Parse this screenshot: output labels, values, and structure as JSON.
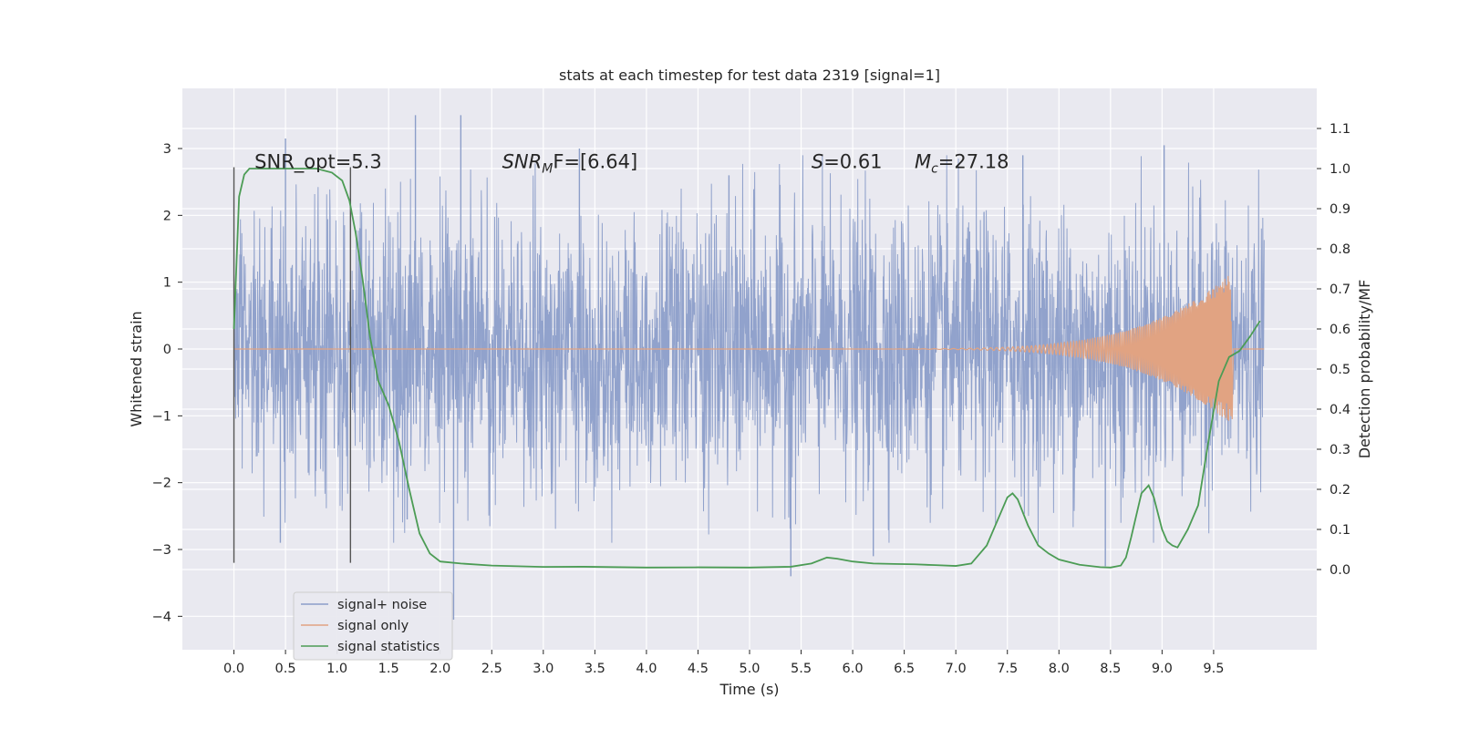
{
  "chart_data": {
    "type": "line",
    "title": "stats at each timestep for test data 2319 [signal=1]",
    "xlabel": "Time (s)",
    "ylabel": "Whitened strain",
    "y2label": "Detection probability/MF",
    "xlim": [
      -0.5,
      10.5
    ],
    "ylim": [
      -4.5,
      3.9
    ],
    "y2lim": [
      -0.2,
      1.2
    ],
    "x_ticks": [
      0.0,
      0.5,
      1.0,
      1.5,
      2.0,
      2.5,
      3.0,
      3.5,
      4.0,
      4.5,
      5.0,
      5.5,
      6.0,
      6.5,
      7.0,
      7.5,
      8.0,
      8.5,
      9.0,
      9.5
    ],
    "x_tick_labels": [
      "0.0",
      "0.5",
      "1.0",
      "1.5",
      "2.0",
      "2.5",
      "3.0",
      "3.5",
      "4.0",
      "4.5",
      "5.0",
      "5.5",
      "6.0",
      "6.5",
      "7.0",
      "7.5",
      "8.0",
      "8.5",
      "9.0",
      "9.5"
    ],
    "y_ticks": [
      3,
      2,
      1,
      0,
      -1,
      -2,
      -3,
      -4
    ],
    "y_tick_labels": [
      "3",
      "2",
      "1",
      "0",
      "−1",
      "−2",
      "−3",
      "−4"
    ],
    "y2_ticks": [
      1.1,
      1.0,
      0.9,
      0.8,
      0.7,
      0.6,
      0.5,
      0.4,
      0.3,
      0.2,
      0.1,
      0.0
    ],
    "y2_tick_labels": [
      "1.1",
      "1.0",
      "0.9",
      "0.8",
      "0.7",
      "0.6",
      "0.5",
      "0.4",
      "0.3",
      "0.2",
      "0.1",
      "0.0"
    ],
    "grid": true,
    "legend_position": "lower-left",
    "annotations": [
      {
        "prefix": "SNR_opt=5.3",
        "sub": "",
        "suffix": "",
        "x": 0.2,
        "y": 2.8
      },
      {
        "prefix": "SNR",
        "sub": "M",
        "suffix": "F=[6.64]",
        "italic_prefix": true,
        "x": 2.6,
        "y": 2.8
      },
      {
        "prefix": "S",
        "sub": "",
        "suffix": "=0.61",
        "italic_prefix": true,
        "x": 5.6,
        "y": 2.8
      },
      {
        "prefix": "M",
        "sub": "c",
        "suffix": "=27.18",
        "italic_prefix": true,
        "x": 6.6,
        "y": 2.8
      }
    ],
    "vertical_markers": [
      {
        "x": 0.0,
        "y_from": -3.2,
        "y_to": 2.72
      },
      {
        "x": 1.13,
        "y_from": -3.2,
        "y_to": 2.72
      }
    ],
    "series": [
      {
        "name": "signal+ noise",
        "color": "#8c9ec9",
        "axis": "left",
        "kind": "noise",
        "time_range": [
          0,
          9.99
        ],
        "typical_abs": 1.5,
        "spikes": [
          [
            1.76,
            3.5
          ],
          [
            2.2,
            3.5
          ],
          [
            0.5,
            3.15
          ],
          [
            2.13,
            -4.05
          ],
          [
            5.4,
            -3.4
          ],
          [
            6.2,
            -3.1
          ],
          [
            8.45,
            -3.25
          ],
          [
            9.02,
            3.05
          ],
          [
            0.45,
            -2.9
          ],
          [
            3.35,
            3.0
          ],
          [
            1.68,
            -2.55
          ],
          [
            4.8,
            2.6
          ],
          [
            7.65,
            2.9
          ]
        ]
      },
      {
        "name": "signal only",
        "color": "#e1a382",
        "axis": "left",
        "kind": "chirp",
        "t_start": 6.3,
        "t_peak": 9.67,
        "peak_amp": 1.1
      },
      {
        "name": "signal statistics",
        "color": "#4c9c55",
        "axis": "right",
        "kind": "line",
        "x": [
          0.0,
          0.05,
          0.1,
          0.15,
          0.25,
          0.4,
          0.6,
          0.8,
          0.95,
          1.05,
          1.12,
          1.18,
          1.25,
          1.32,
          1.4,
          1.5,
          1.6,
          1.7,
          1.8,
          1.9,
          2.0,
          2.2,
          2.5,
          3.0,
          3.4,
          4.0,
          4.5,
          5.0,
          5.4,
          5.6,
          5.75,
          5.85,
          6.0,
          6.2,
          6.4,
          6.6,
          6.8,
          7.0,
          7.15,
          7.3,
          7.4,
          7.5,
          7.55,
          7.6,
          7.7,
          7.8,
          7.9,
          8.0,
          8.2,
          8.4,
          8.5,
          8.6,
          8.65,
          8.7,
          8.8,
          8.87,
          8.92,
          9.0,
          9.05,
          9.1,
          9.15,
          9.25,
          9.35,
          9.45,
          9.55,
          9.65,
          9.75,
          9.85,
          9.95
        ],
        "y": [
          0.6,
          0.93,
          0.985,
          1.0,
          1.0,
          1.0,
          1.0,
          1.0,
          0.99,
          0.97,
          0.92,
          0.84,
          0.72,
          0.58,
          0.47,
          0.41,
          0.32,
          0.2,
          0.09,
          0.04,
          0.02,
          0.015,
          0.01,
          0.0065,
          0.007,
          0.005,
          0.0055,
          0.005,
          0.007,
          0.015,
          0.03,
          0.027,
          0.02,
          0.015,
          0.014,
          0.013,
          0.011,
          0.009,
          0.015,
          0.06,
          0.12,
          0.18,
          0.19,
          0.175,
          0.11,
          0.06,
          0.04,
          0.025,
          0.012,
          0.006,
          0.005,
          0.01,
          0.03,
          0.08,
          0.19,
          0.21,
          0.18,
          0.1,
          0.07,
          0.06,
          0.055,
          0.1,
          0.16,
          0.32,
          0.47,
          0.53,
          0.545,
          0.58,
          0.62
        ]
      }
    ]
  }
}
